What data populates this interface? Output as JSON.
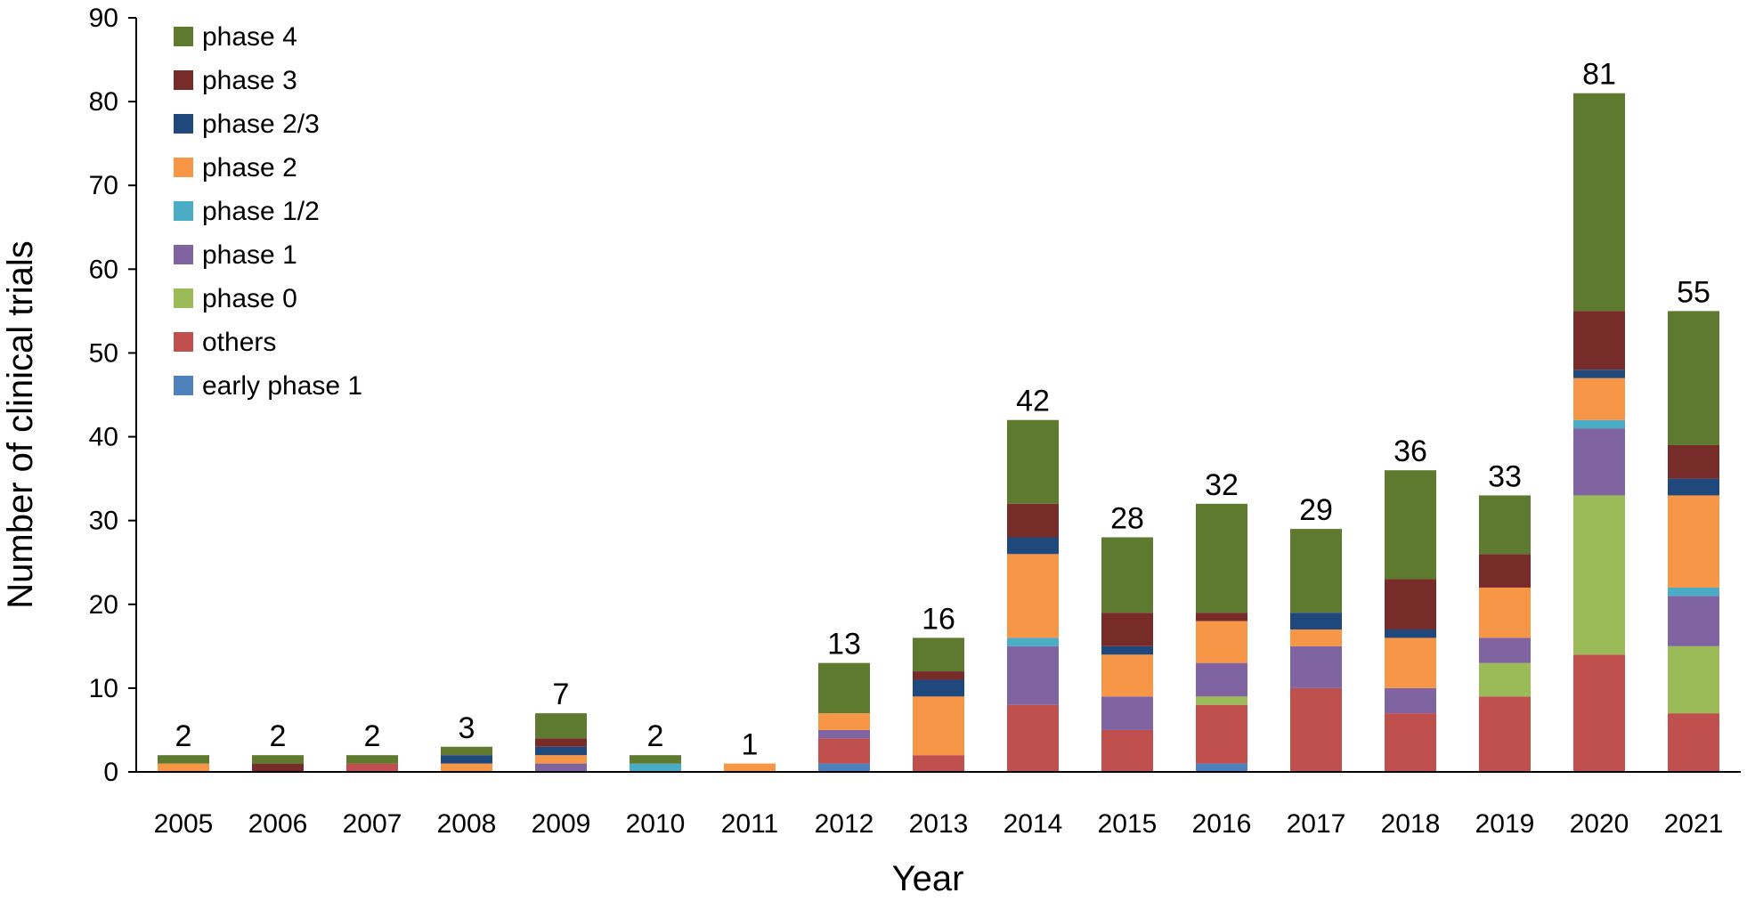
{
  "chart_data": {
    "type": "bar",
    "stacked": true,
    "xlabel": "Year",
    "ylabel": "Number of clinical trials",
    "ylim": [
      0,
      90
    ],
    "yticks": [
      0,
      10,
      20,
      30,
      40,
      50,
      60,
      70,
      80,
      90
    ],
    "categories": [
      "2005",
      "2006",
      "2007",
      "2008",
      "2009",
      "2010",
      "2011",
      "2012",
      "2013",
      "2014",
      "2015",
      "2016",
      "2017",
      "2018",
      "2019",
      "2020",
      "2021"
    ],
    "totals": [
      2,
      2,
      2,
      3,
      7,
      2,
      1,
      13,
      16,
      42,
      28,
      32,
      29,
      36,
      33,
      81,
      55
    ],
    "legend_position": "top-left",
    "series": [
      {
        "name": "early phase 1",
        "color": "#4f81bd",
        "values": [
          0,
          0,
          0,
          0,
          0,
          0,
          0,
          1,
          0,
          0,
          0,
          1,
          0,
          0,
          0,
          0,
          0
        ]
      },
      {
        "name": "others",
        "color": "#c0504d",
        "values": [
          0,
          0,
          1,
          0,
          0,
          0,
          0,
          3,
          2,
          8,
          5,
          7,
          10,
          7,
          9,
          14,
          7
        ]
      },
      {
        "name": "phase 0",
        "color": "#9bbb59",
        "values": [
          0,
          0,
          0,
          0,
          0,
          0,
          0,
          0,
          0,
          0,
          0,
          1,
          0,
          0,
          4,
          19,
          8
        ]
      },
      {
        "name": "phase 1",
        "color": "#8064a2",
        "values": [
          0,
          0,
          0,
          0,
          1,
          0,
          0,
          1,
          0,
          7,
          4,
          4,
          5,
          3,
          3,
          8,
          6
        ]
      },
      {
        "name": "phase 1/2",
        "color": "#4bacc6",
        "values": [
          0,
          0,
          0,
          0,
          0,
          1,
          0,
          0,
          0,
          1,
          0,
          0,
          0,
          0,
          0,
          1,
          1
        ]
      },
      {
        "name": "phase 2",
        "color": "#f79646",
        "values": [
          1,
          0,
          0,
          1,
          1,
          0,
          1,
          2,
          7,
          10,
          5,
          5,
          2,
          6,
          6,
          5,
          11
        ]
      },
      {
        "name": "phase 2/3",
        "color": "#1f497d",
        "values": [
          0,
          0,
          0,
          1,
          1,
          0,
          0,
          0,
          2,
          2,
          1,
          0,
          2,
          1,
          0,
          1,
          2
        ]
      },
      {
        "name": "phase 3",
        "color": "#772c2a",
        "values": [
          0,
          1,
          0,
          0,
          1,
          0,
          0,
          0,
          1,
          4,
          4,
          1,
          0,
          6,
          4,
          7,
          4
        ]
      },
      {
        "name": "phase 4",
        "color": "#5e7a2e",
        "values": [
          1,
          1,
          1,
          1,
          3,
          1,
          0,
          6,
          4,
          10,
          9,
          13,
          10,
          13,
          7,
          26,
          16
        ]
      }
    ]
  }
}
